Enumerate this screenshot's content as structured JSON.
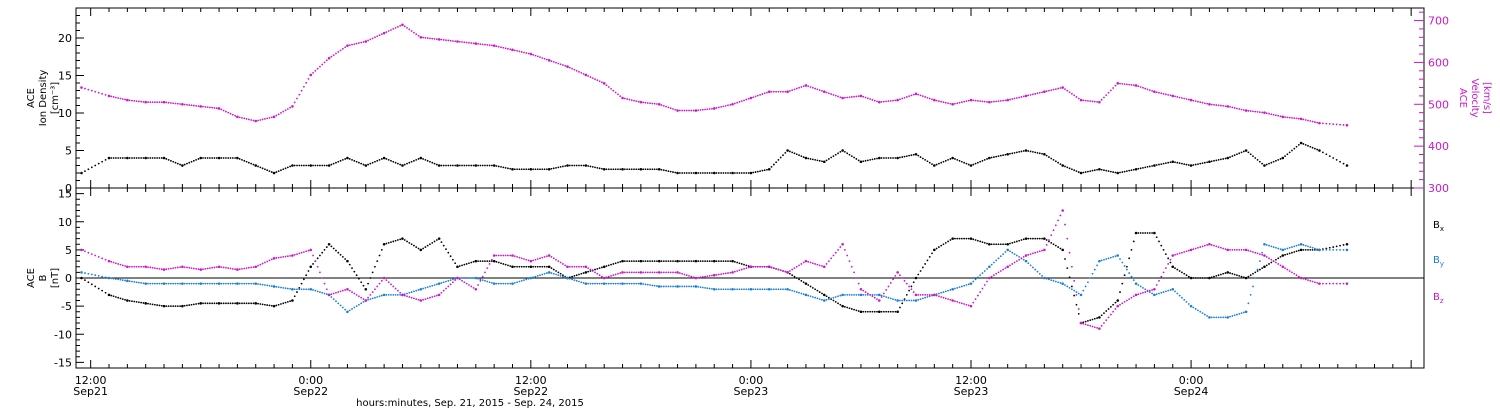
{
  "colors": {
    "black": "#000000",
    "blue": "#1a7fd6",
    "magenta": "#cc18cc"
  },
  "chart_data": [
    {
      "type": "scatter",
      "panel": "top",
      "left_axis": {
        "label_lines": [
          "ACE",
          "Ion Density",
          "[cm⁻³]"
        ],
        "ylim": [
          0,
          24
        ],
        "ticks": [
          0,
          5,
          10,
          15,
          20
        ]
      },
      "right_axis": {
        "label_lines": [
          "ACE",
          "Velocity",
          "[km/s]"
        ],
        "ylim": [
          300,
          730
        ],
        "ticks": [
          300,
          400,
          500,
          600,
          700
        ]
      },
      "x_hours_since_sep21_0000": [],
      "series": [
        {
          "name": "Ion Density",
          "axis": "left",
          "color": "#000000",
          "x": [
            11.5,
            13,
            14,
            15,
            16,
            17,
            18,
            19,
            20,
            21,
            22,
            23,
            24,
            25,
            26,
            27,
            28,
            29,
            30,
            31,
            32,
            33,
            34,
            35,
            36,
            37,
            38,
            39,
            40,
            41,
            42,
            43,
            44,
            45,
            46,
            47,
            48,
            49,
            50,
            51,
            52,
            53,
            54,
            55,
            56,
            57,
            58,
            59,
            60,
            61,
            62,
            63,
            64,
            65,
            66,
            67,
            68,
            69,
            70,
            71,
            72,
            73,
            74,
            75,
            76,
            77,
            78,
            79,
            80.5
          ],
          "y": [
            2,
            4,
            4,
            4,
            4,
            3,
            4,
            4,
            4,
            3,
            2,
            3,
            3,
            3,
            4,
            3,
            4,
            3,
            4,
            3,
            3,
            3,
            3,
            2.5,
            2.5,
            2.5,
            3,
            3,
            2.5,
            2.5,
            2.5,
            2.5,
            2,
            2,
            2,
            2,
            2,
            2.5,
            5,
            4,
            3.5,
            5,
            3.5,
            4,
            4,
            4.5,
            3,
            4,
            3,
            4,
            4.5,
            5,
            4.5,
            3,
            2,
            2.5,
            2,
            2.5,
            3,
            3.5,
            3,
            3.5,
            4,
            5,
            3,
            4,
            6,
            5,
            3
          ]
        },
        {
          "name": "Velocity",
          "axis": "right",
          "color": "#cc18cc",
          "x": [
            11.5,
            13,
            14,
            15,
            16,
            17,
            18,
            19,
            20,
            21,
            22,
            23,
            24,
            25,
            26,
            27,
            28,
            29,
            30,
            31,
            32,
            33,
            34,
            35,
            36,
            37,
            38,
            39,
            40,
            41,
            42,
            43,
            44,
            45,
            46,
            47,
            48,
            49,
            50,
            51,
            52,
            53,
            54,
            55,
            56,
            57,
            58,
            59,
            60,
            61,
            62,
            63,
            64,
            65,
            66,
            67,
            68,
            69,
            70,
            71,
            72,
            73,
            74,
            75,
            76,
            77,
            78,
            79,
            80.5
          ],
          "y": [
            540,
            520,
            510,
            505,
            505,
            500,
            495,
            490,
            470,
            460,
            470,
            495,
            570,
            610,
            640,
            650,
            670,
            690,
            660,
            655,
            650,
            645,
            640,
            630,
            620,
            605,
            590,
            570,
            550,
            515,
            505,
            500,
            485,
            485,
            490,
            500,
            515,
            530,
            530,
            545,
            530,
            515,
            520,
            505,
            510,
            525,
            510,
            500,
            510,
            505,
            510,
            520,
            530,
            540,
            510,
            505,
            550,
            545,
            530,
            520,
            510,
            500,
            495,
            485,
            480,
            470,
            465,
            455,
            450
          ]
        }
      ]
    },
    {
      "type": "scatter",
      "panel": "bottom",
      "left_axis": {
        "label_lines": [
          "ACE",
          "B",
          "[nT]"
        ],
        "ylim": [
          -16,
          16
        ],
        "ticks": [
          -15,
          -10,
          -5,
          0,
          5,
          10,
          15
        ]
      },
      "zero_line": true,
      "legend": [
        "Bx",
        "By",
        "Bz"
      ],
      "series": [
        {
          "name": "Bx",
          "color": "#000000",
          "x": [
            11.5,
            13,
            14,
            15,
            16,
            17,
            18,
            19,
            20,
            21,
            22,
            23,
            24,
            25,
            26,
            27,
            28,
            29,
            30,
            31,
            32,
            33,
            34,
            35,
            36,
            37,
            38,
            39,
            40,
            41,
            42,
            43,
            44,
            45,
            46,
            47,
            48,
            49,
            50,
            51,
            52,
            53,
            54,
            55,
            56,
            57,
            58,
            59,
            60,
            61,
            62,
            63,
            64,
            65,
            66,
            67,
            68,
            69,
            70,
            71,
            72,
            73,
            74,
            75,
            76,
            77,
            78,
            79,
            80.5
          ],
          "y": [
            0,
            -3,
            -4,
            -4.5,
            -5,
            -5,
            -4.5,
            -4.5,
            -4.5,
            -4.5,
            -5,
            -4,
            2,
            6,
            3,
            -2,
            6,
            7,
            5,
            7,
            2,
            3,
            3,
            2,
            2,
            2,
            0,
            1,
            2,
            3,
            3,
            3,
            3,
            3,
            3,
            3,
            2,
            2,
            1,
            -1,
            -3,
            -5,
            -6,
            -6,
            -6,
            0,
            5,
            7,
            7,
            6,
            6,
            7,
            7,
            5,
            -8,
            -7,
            -4,
            8,
            8,
            2,
            0,
            0,
            1,
            0,
            2,
            4,
            5,
            5,
            6
          ]
        },
        {
          "name": "By",
          "color": "#1a7fd6",
          "x": [
            11.5,
            13,
            14,
            15,
            16,
            17,
            18,
            19,
            20,
            21,
            22,
            23,
            24,
            25,
            26,
            27,
            28,
            29,
            30,
            31,
            32,
            33,
            34,
            35,
            36,
            37,
            38,
            39,
            40,
            41,
            42,
            43,
            44,
            45,
            46,
            47,
            48,
            49,
            50,
            51,
            52,
            53,
            54,
            55,
            56,
            57,
            58,
            59,
            60,
            61,
            62,
            63,
            64,
            65,
            66,
            67,
            68,
            69,
            70,
            71,
            72,
            73,
            74,
            75,
            76,
            77,
            78,
            79,
            80.5
          ],
          "y": [
            1,
            0,
            -0.5,
            -1,
            -1,
            -1,
            -1,
            -1,
            -1,
            -1,
            -1.5,
            -2,
            -2,
            -3,
            -6,
            -4,
            -3,
            -3,
            -2,
            -1,
            0,
            0,
            -1,
            -1,
            0,
            1,
            0,
            -1,
            -1,
            -1,
            -1,
            -1.5,
            -1.5,
            -1.5,
            -2,
            -2,
            -2,
            -2,
            -2,
            -3,
            -4,
            -3,
            -3,
            -3,
            -4,
            -4,
            -3,
            -2,
            -1,
            2,
            5,
            3,
            0,
            -1,
            -3,
            3,
            4,
            -1,
            -3,
            -2,
            -5,
            -7,
            -7,
            -6,
            6,
            5,
            6,
            5,
            5
          ]
        },
        {
          "name": "Bz",
          "color": "#cc18cc",
          "x": [
            11.5,
            13,
            14,
            15,
            16,
            17,
            18,
            19,
            20,
            21,
            22,
            23,
            24,
            25,
            26,
            27,
            28,
            29,
            30,
            31,
            32,
            33,
            34,
            35,
            36,
            37,
            38,
            39,
            40,
            41,
            42,
            43,
            44,
            45,
            46,
            47,
            48,
            49,
            50,
            51,
            52,
            53,
            54,
            55,
            56,
            57,
            58,
            59,
            60,
            61,
            62,
            63,
            64,
            65,
            66,
            67,
            68,
            69,
            70,
            71,
            72,
            73,
            74,
            75,
            76,
            77,
            78,
            79,
            80.5
          ],
          "y": [
            5,
            3,
            2,
            2,
            1.5,
            2,
            1.5,
            2,
            1.5,
            2,
            3.5,
            4,
            5,
            -3,
            -2,
            -4,
            0,
            -3,
            -4,
            -3,
            0,
            -2,
            4,
            4,
            3,
            4,
            2,
            2,
            0,
            1,
            1,
            1,
            1,
            0,
            0.5,
            1,
            2,
            2,
            1,
            3,
            2,
            6,
            -2,
            -4,
            1,
            -3,
            -3,
            -4,
            -5,
            0,
            2,
            4,
            5,
            12,
            -8,
            -9,
            -5,
            -3,
            -2,
            4,
            5,
            6,
            5,
            5,
            4,
            2,
            0,
            -1,
            -1
          ]
        }
      ]
    }
  ],
  "x_axis": {
    "ticks": [
      {
        "line1": "12:00",
        "line2": "Sep21"
      },
      {
        "line1": "0:00",
        "line2": "Sep22"
      },
      {
        "line1": "12:00",
        "line2": "Sep22"
      },
      {
        "line1": "0:00",
        "line2": "Sep23"
      },
      {
        "line1": "12:00",
        "line2": "Sep23"
      },
      {
        "line1": "0:00",
        "line2": "Sep24"
      }
    ],
    "title": "hours:minutes, Sep. 21, 2015 - Sep. 24, 2015"
  }
}
